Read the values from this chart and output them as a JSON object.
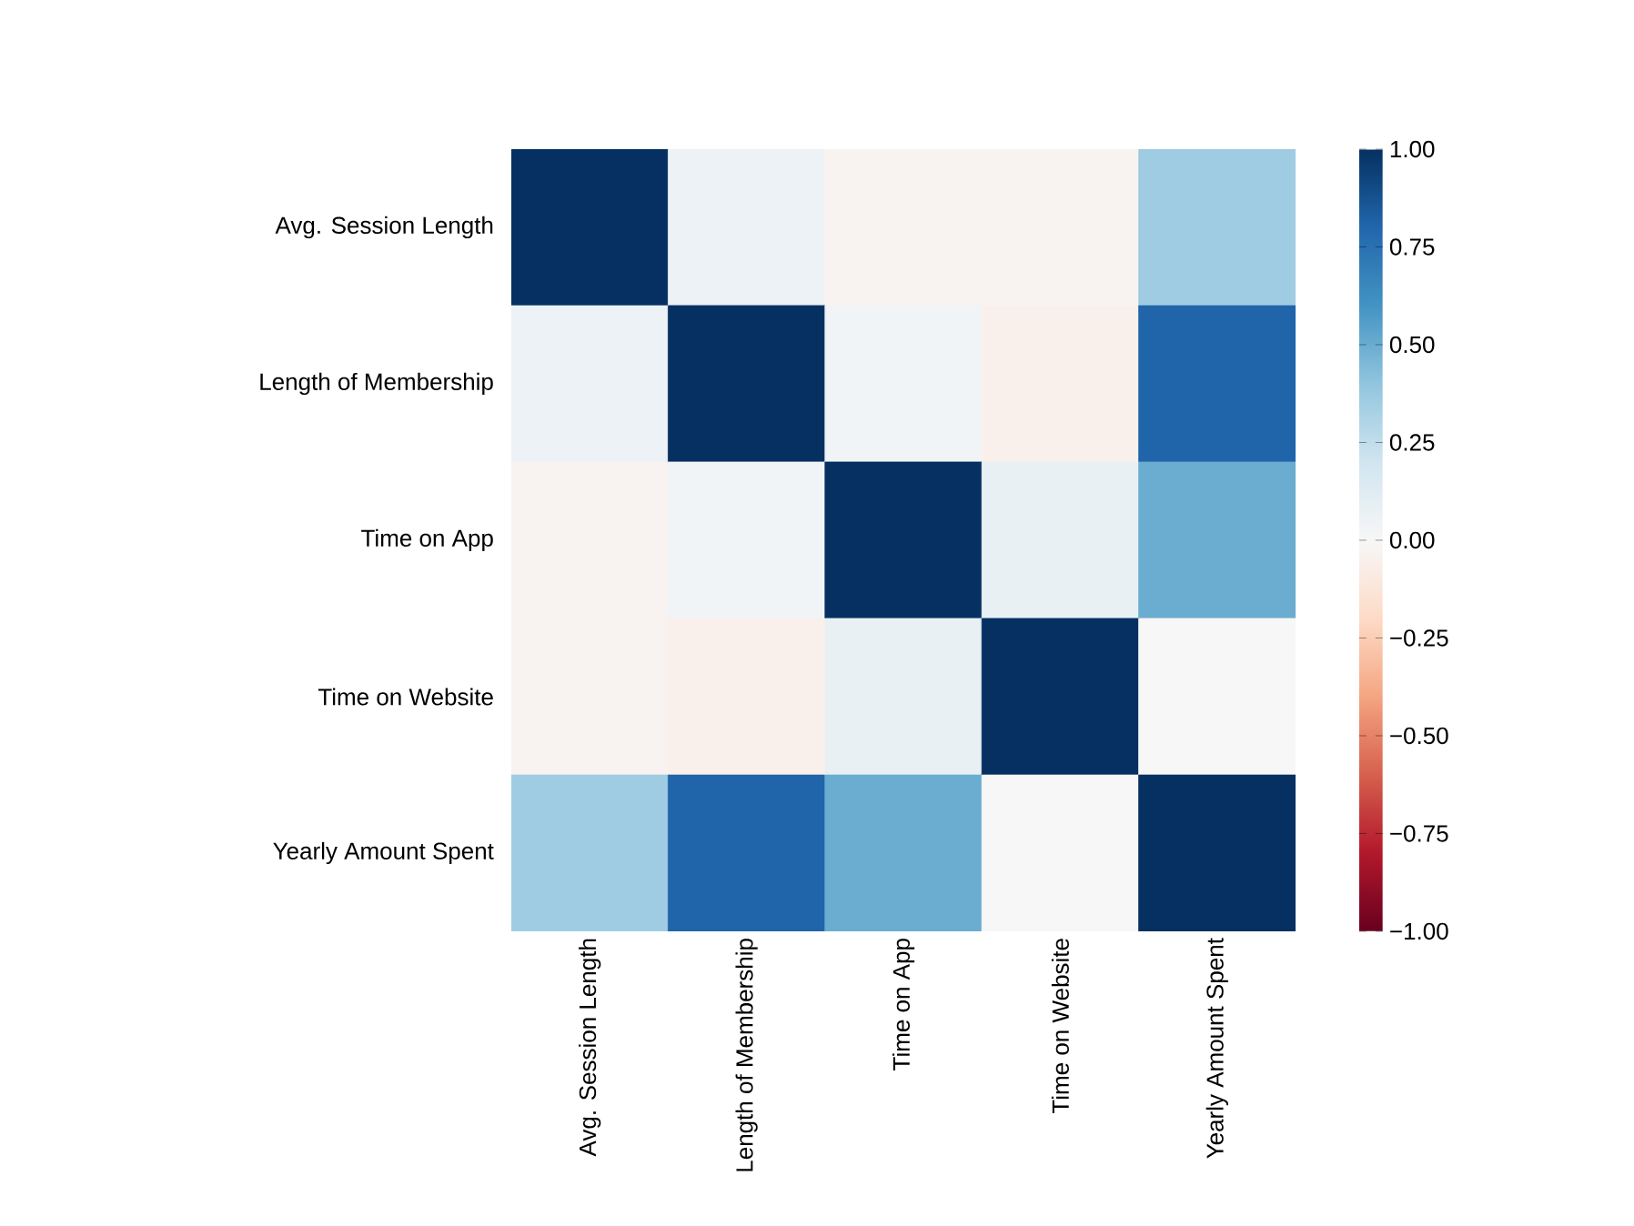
{
  "chart_data": {
    "type": "heatmap",
    "categories": [
      "Avg. Session Length",
      "Length of Membership",
      "Time on App",
      "Time on Website",
      "Yearly Amount Spent"
    ],
    "y_categories": [
      "Avg. Session Length",
      "Length of Membership",
      "Time on App",
      "Time on Website",
      "Yearly Amount Spent"
    ],
    "cells": [
      [
        1,
        0.06,
        -0.03,
        -0.03,
        0.36
      ],
      [
        0.06,
        1,
        0.03,
        -0.05,
        0.81
      ],
      [
        -0.03,
        0.03,
        1,
        0.08,
        0.5
      ],
      [
        -0.03,
        -0.05,
        0.08,
        1,
        0
      ],
      [
        0.36,
        0.81,
        0.5,
        0,
        1
      ]
    ],
    "clim": [
      -1,
      1
    ],
    "cticks": [
      {
        "value": -1,
        "label": "−1.00"
      },
      {
        "value": -0.75,
        "label": "−0.75"
      },
      {
        "value": -0.5,
        "label": "−0.50"
      },
      {
        "value": -0.25,
        "label": "−0.25"
      },
      {
        "value": 0,
        "label": "0.00"
      },
      {
        "value": 0.25,
        "label": "0.25"
      },
      {
        "value": 0.5,
        "label": "0.50"
      },
      {
        "value": 0.75,
        "label": "0.75"
      },
      {
        "value": 1,
        "label": "1.00"
      }
    ]
  }
}
